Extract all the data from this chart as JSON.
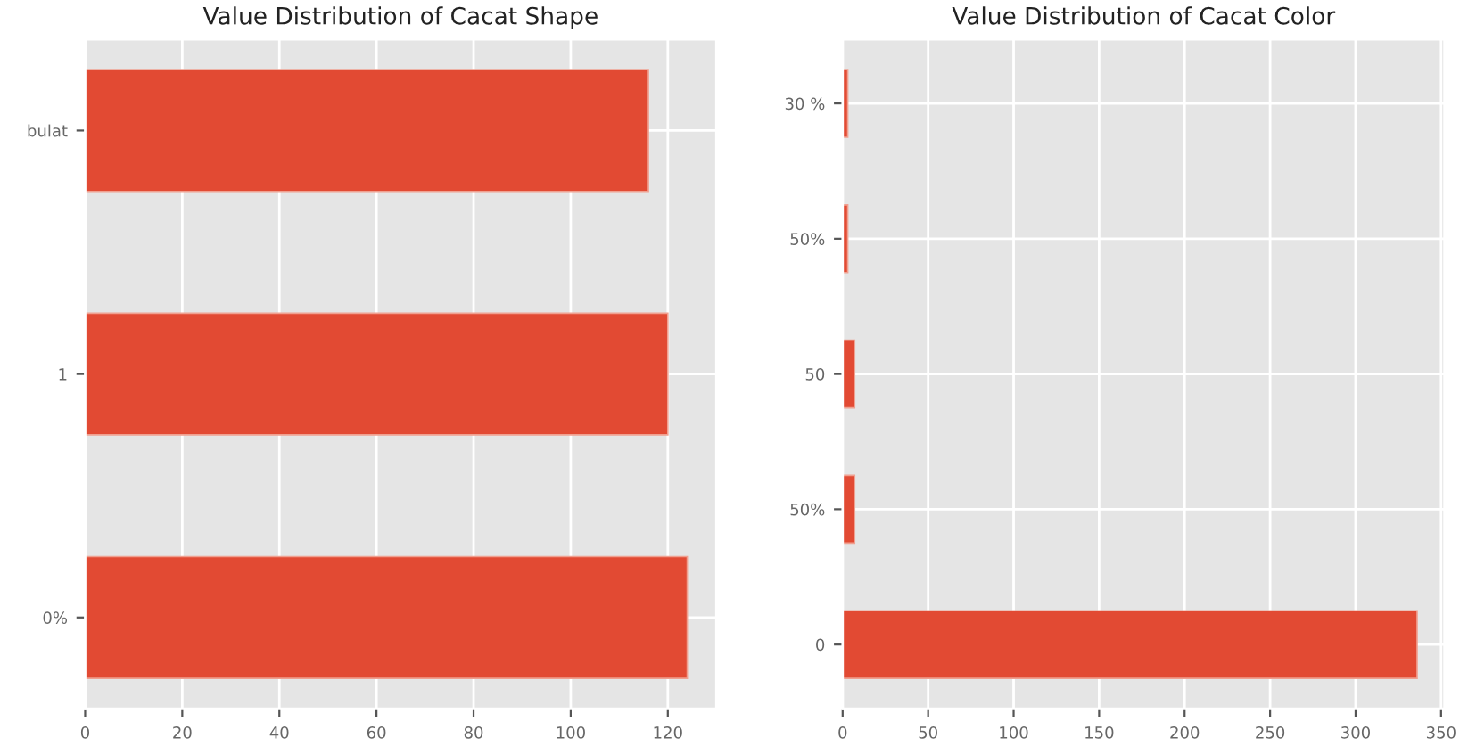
{
  "chart_data": [
    {
      "type": "bar",
      "orientation": "horizontal",
      "title": "Value Distribution of Cacat Shape",
      "categories": [
        "bulat",
        "1",
        "0%"
      ],
      "values": [
        116,
        120,
        124
      ],
      "color": "#e24a33",
      "xlim": [
        0,
        130
      ],
      "xticks": [
        0,
        20,
        40,
        60,
        80,
        100,
        120
      ],
      "grid": true
    },
    {
      "type": "bar",
      "orientation": "horizontal",
      "title": "Value Distribution of Cacat Color",
      "categories": [
        "30 %",
        "50%",
        "50",
        "50%",
        "0"
      ],
      "values": [
        3,
        3,
        7,
        7,
        336
      ],
      "color": "#e24a33",
      "xlim": [
        0,
        352
      ],
      "xticks": [
        0,
        50,
        100,
        150,
        200,
        250,
        300,
        350
      ],
      "grid": true
    }
  ]
}
